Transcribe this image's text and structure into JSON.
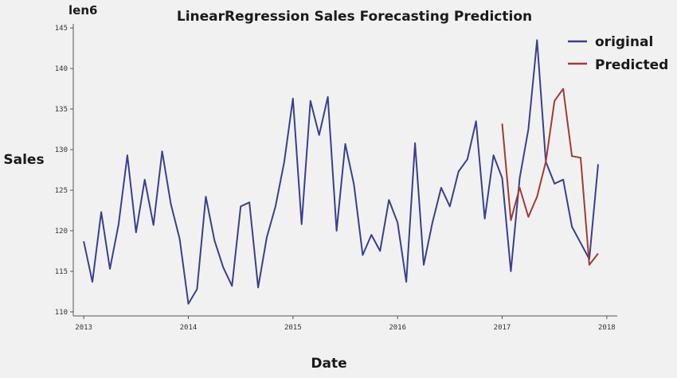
{
  "chart_data": {
    "type": "line",
    "title": "LinearRegression Sales Forecasting Prediction",
    "tag": "len6",
    "xlabel": "Date",
    "ylabel": "Sales",
    "xlim": [
      2012.9,
      2018.1
    ],
    "ylim": [
      109.5,
      145.5
    ],
    "x_ticks": [
      2013,
      2014,
      2015,
      2016,
      2017,
      2018
    ],
    "y_ticks": [
      110,
      115,
      120,
      125,
      130,
      135,
      140,
      145
    ],
    "grid": false,
    "legend": "top-right",
    "colors": {
      "original": "#3b3f8f",
      "predicted": "#a23a3a"
    },
    "series": [
      {
        "name": "original",
        "x": [
          2013.0,
          2013.083,
          2013.167,
          2013.25,
          2013.333,
          2013.417,
          2013.5,
          2013.583,
          2013.667,
          2013.75,
          2013.833,
          2013.917,
          2014.0,
          2014.083,
          2014.167,
          2014.25,
          2014.333,
          2014.417,
          2014.5,
          2014.583,
          2014.667,
          2014.75,
          2014.833,
          2014.917,
          2015.0,
          2015.083,
          2015.167,
          2015.25,
          2015.333,
          2015.417,
          2015.5,
          2015.583,
          2015.667,
          2015.75,
          2015.833,
          2015.917,
          2016.0,
          2016.083,
          2016.167,
          2016.25,
          2016.333,
          2016.417,
          2016.5,
          2016.583,
          2016.667,
          2016.75,
          2016.833,
          2016.917,
          2017.0,
          2017.083,
          2017.167,
          2017.25,
          2017.333,
          2017.417,
          2017.5,
          2017.583,
          2017.667,
          2017.75,
          2017.833,
          2017.917
        ],
        "values": [
          118.7,
          113.7,
          122.3,
          115.3,
          120.8,
          129.3,
          119.8,
          126.3,
          120.7,
          129.8,
          123.3,
          119.0,
          111.0,
          112.8,
          124.2,
          118.8,
          115.5,
          113.2,
          123.0,
          123.5,
          113.0,
          119.2,
          123.0,
          128.5,
          136.3,
          120.8,
          136.0,
          131.8,
          136.5,
          120.0,
          130.7,
          125.7,
          117.0,
          119.5,
          117.5,
          123.8,
          121.0,
          113.7,
          130.8,
          115.8,
          121.0,
          125.3,
          123.0,
          127.3,
          128.8,
          133.5,
          121.5,
          129.3,
          126.5,
          115.0,
          126.5,
          132.5,
          143.5,
          128.5,
          125.8,
          126.3,
          120.5,
          118.5,
          116.5,
          128.2
        ]
      },
      {
        "name": "Predicted",
        "x": [
          2017.0,
          2017.083,
          2017.167,
          2017.25,
          2017.333,
          2017.417,
          2017.5,
          2017.583,
          2017.667,
          2017.75,
          2017.833,
          2017.917
        ],
        "values": [
          133.2,
          121.3,
          125.3,
          121.7,
          124.2,
          128.5,
          136.0,
          137.5,
          129.2,
          129.0,
          115.8,
          117.2
        ]
      }
    ]
  }
}
